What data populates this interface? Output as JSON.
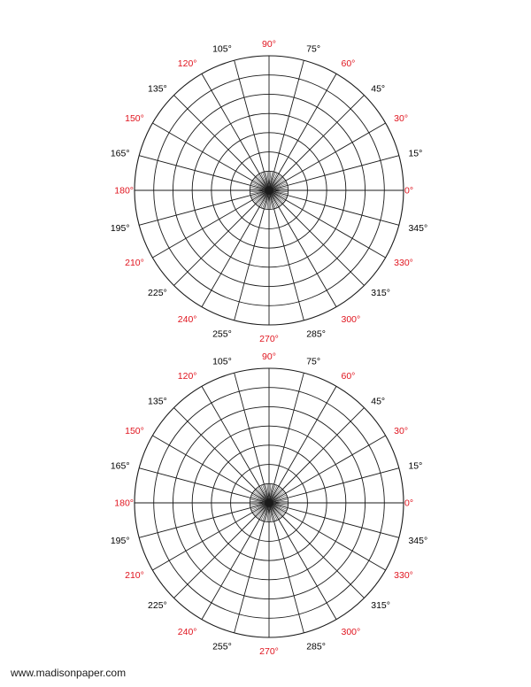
{
  "page": {
    "footer_url": "www.madisonpaper.com"
  },
  "grid": {
    "rings": 7,
    "spoke_step_deg": 15,
    "major_step_deg": 30,
    "label_suffix": "°",
    "line_color": "#1a1a1a",
    "major_label_color": "#e0141e",
    "minor_label_color": "#000000",
    "angles": [
      0,
      15,
      30,
      45,
      60,
      75,
      90,
      105,
      120,
      135,
      150,
      165,
      180,
      195,
      210,
      225,
      240,
      255,
      270,
      285,
      300,
      315,
      330,
      345
    ]
  },
  "grids": [
    {
      "labels": [
        "0°",
        "15°",
        "30°",
        "45°",
        "60°",
        "75°",
        "90°",
        "105°",
        "120°",
        "135°",
        "150°",
        "165°",
        "180°",
        "195°",
        "210°",
        "225°",
        "240°",
        "255°",
        "270°",
        "285°",
        "300°",
        "315°",
        "330°",
        "345°"
      ]
    },
    {
      "labels": [
        "0°",
        "15°",
        "30°",
        "45°",
        "60°",
        "75°",
        "90°",
        "105°",
        "120°",
        "135°",
        "150°",
        "165°",
        "180°",
        "195°",
        "210°",
        "225°",
        "240°",
        "255°",
        "270°",
        "285°",
        "300°",
        "315°",
        "330°",
        "345°"
      ]
    }
  ]
}
